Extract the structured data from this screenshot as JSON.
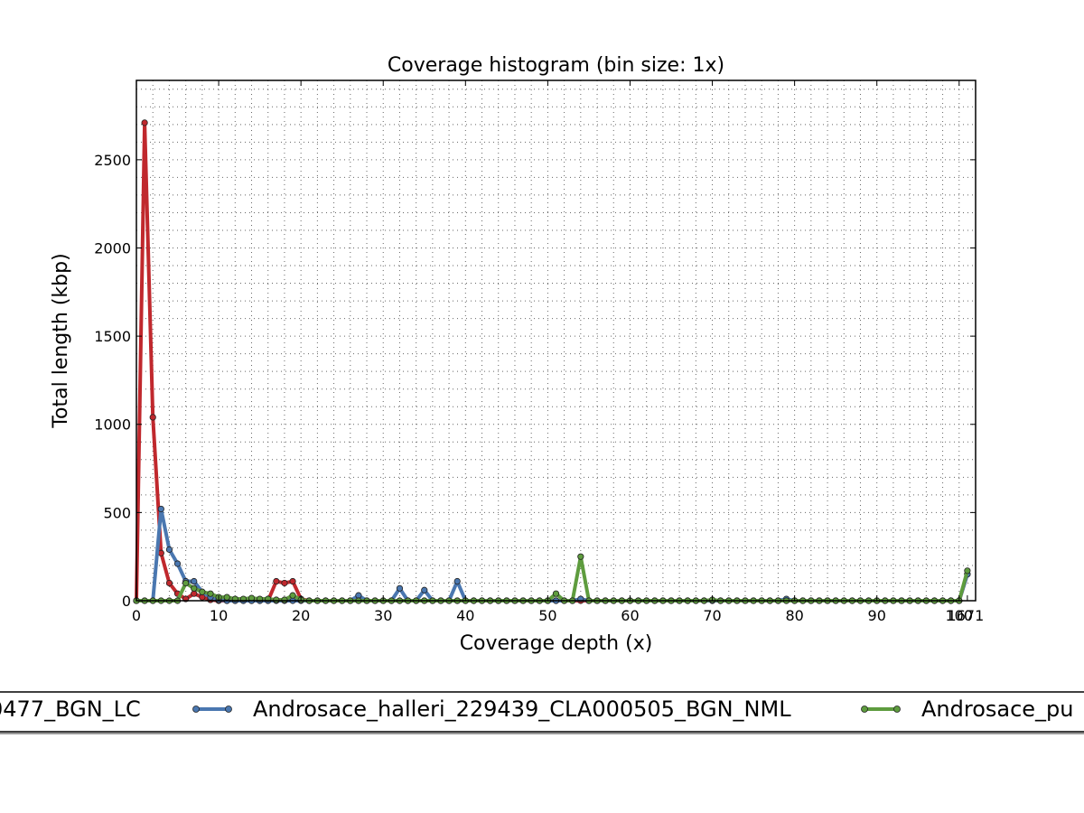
{
  "chart_data": {
    "type": "line",
    "title": "Coverage histogram (bin size: 1x)",
    "xlabel": "Coverage depth (x)",
    "ylabel": "Total length (kbp)",
    "xlim": [
      0,
      102
    ],
    "ylim": [
      0,
      2950
    ],
    "x_ticks": [
      0,
      10,
      20,
      30,
      40,
      50,
      60,
      70,
      80,
      90,
      100
    ],
    "x_tick_labels": [
      "0",
      "10",
      "20",
      "30",
      "40",
      "50",
      "60",
      "70",
      "80",
      "90",
      "100"
    ],
    "x_last_tick": {
      "x": 101,
      "label": "1671"
    },
    "y_ticks": [
      0,
      500,
      1000,
      1500,
      2000,
      2500
    ],
    "y_tick_labels": [
      "0",
      "500",
      "1000",
      "1500",
      "2000",
      "2500"
    ],
    "grid": true,
    "legend_placement": "bottom",
    "series": [
      {
        "name": "",
        "legend_label": "0477_BGN_LC",
        "color": "#c0282d",
        "points": [
          [
            0,
            0
          ],
          [
            1,
            2710
          ],
          [
            2,
            1040
          ],
          [
            3,
            270
          ],
          [
            4,
            100
          ],
          [
            5,
            40
          ],
          [
            6,
            10
          ],
          [
            7,
            40
          ],
          [
            8,
            20
          ],
          [
            9,
            5
          ],
          [
            10,
            0
          ],
          [
            11,
            0
          ],
          [
            12,
            0
          ],
          [
            13,
            0
          ],
          [
            14,
            0
          ],
          [
            15,
            0
          ],
          [
            16,
            0
          ],
          [
            17,
            110
          ],
          [
            18,
            100
          ],
          [
            19,
            110
          ],
          [
            20,
            10
          ],
          [
            21,
            0
          ],
          [
            22,
            0
          ],
          [
            23,
            0
          ],
          [
            24,
            0
          ],
          [
            25,
            0
          ],
          [
            26,
            0
          ],
          [
            27,
            0
          ],
          [
            28,
            0
          ],
          [
            29,
            0
          ],
          [
            30,
            0
          ],
          [
            31,
            0
          ],
          [
            32,
            0
          ],
          [
            33,
            0
          ],
          [
            34,
            0
          ],
          [
            35,
            0
          ],
          [
            36,
            0
          ],
          [
            37,
            0
          ],
          [
            38,
            0
          ],
          [
            39,
            0
          ],
          [
            40,
            0
          ],
          [
            41,
            0
          ],
          [
            42,
            0
          ],
          [
            43,
            0
          ],
          [
            44,
            0
          ],
          [
            45,
            0
          ],
          [
            46,
            0
          ],
          [
            47,
            0
          ],
          [
            48,
            0
          ],
          [
            49,
            0
          ],
          [
            50,
            0
          ],
          [
            51,
            0
          ],
          [
            52,
            0
          ],
          [
            53,
            0
          ],
          [
            54,
            0
          ],
          [
            55,
            0
          ],
          [
            56,
            0
          ],
          [
            57,
            0
          ],
          [
            58,
            0
          ],
          [
            59,
            0
          ],
          [
            60,
            0
          ],
          [
            61,
            0
          ],
          [
            62,
            0
          ],
          [
            63,
            0
          ],
          [
            64,
            0
          ],
          [
            65,
            0
          ],
          [
            66,
            0
          ],
          [
            67,
            0
          ],
          [
            68,
            0
          ],
          [
            69,
            0
          ],
          [
            70,
            0
          ],
          [
            71,
            0
          ],
          [
            72,
            0
          ],
          [
            73,
            0
          ],
          [
            74,
            0
          ],
          [
            75,
            0
          ],
          [
            76,
            0
          ],
          [
            77,
            0
          ],
          [
            78,
            0
          ],
          [
            79,
            0
          ],
          [
            80,
            0
          ],
          [
            81,
            0
          ],
          [
            82,
            0
          ],
          [
            83,
            0
          ],
          [
            84,
            0
          ],
          [
            85,
            0
          ],
          [
            86,
            0
          ],
          [
            87,
            0
          ],
          [
            88,
            0
          ],
          [
            89,
            0
          ],
          [
            90,
            0
          ],
          [
            91,
            0
          ],
          [
            92,
            0
          ],
          [
            93,
            0
          ],
          [
            94,
            0
          ],
          [
            95,
            0
          ],
          [
            96,
            0
          ],
          [
            97,
            0
          ],
          [
            98,
            0
          ],
          [
            99,
            0
          ],
          [
            100,
            0
          ],
          [
            101,
            150
          ]
        ]
      },
      {
        "name": "Androsace_halleri_229439_CLA000505_BGN_NML",
        "legend_label": "Androsace_halleri_229439_CLA000505_BGN_NML",
        "color": "#4a77b0",
        "points": [
          [
            0,
            0
          ],
          [
            1,
            0
          ],
          [
            2,
            0
          ],
          [
            3,
            520
          ],
          [
            4,
            290
          ],
          [
            5,
            210
          ],
          [
            6,
            110
          ],
          [
            7,
            110
          ],
          [
            8,
            50
          ],
          [
            9,
            20
          ],
          [
            10,
            5
          ],
          [
            11,
            0
          ],
          [
            12,
            0
          ],
          [
            13,
            0
          ],
          [
            14,
            0
          ],
          [
            15,
            0
          ],
          [
            16,
            0
          ],
          [
            17,
            0
          ],
          [
            18,
            0
          ],
          [
            19,
            0
          ],
          [
            20,
            0
          ],
          [
            21,
            0
          ],
          [
            22,
            0
          ],
          [
            23,
            0
          ],
          [
            24,
            0
          ],
          [
            25,
            0
          ],
          [
            26,
            0
          ],
          [
            27,
            30
          ],
          [
            28,
            0
          ],
          [
            29,
            0
          ],
          [
            30,
            0
          ],
          [
            31,
            0
          ],
          [
            32,
            70
          ],
          [
            33,
            0
          ],
          [
            34,
            0
          ],
          [
            35,
            60
          ],
          [
            36,
            0
          ],
          [
            37,
            0
          ],
          [
            38,
            0
          ],
          [
            39,
            110
          ],
          [
            40,
            0
          ],
          [
            41,
            0
          ],
          [
            42,
            0
          ],
          [
            43,
            0
          ],
          [
            44,
            0
          ],
          [
            45,
            0
          ],
          [
            46,
            0
          ],
          [
            47,
            0
          ],
          [
            48,
            0
          ],
          [
            49,
            0
          ],
          [
            50,
            0
          ],
          [
            51,
            0
          ],
          [
            52,
            0
          ],
          [
            53,
            0
          ],
          [
            54,
            10
          ],
          [
            55,
            0
          ],
          [
            56,
            0
          ],
          [
            57,
            0
          ],
          [
            58,
            0
          ],
          [
            59,
            0
          ],
          [
            60,
            0
          ],
          [
            61,
            0
          ],
          [
            62,
            0
          ],
          [
            63,
            0
          ],
          [
            64,
            0
          ],
          [
            65,
            0
          ],
          [
            66,
            0
          ],
          [
            67,
            0
          ],
          [
            68,
            0
          ],
          [
            69,
            0
          ],
          [
            70,
            0
          ],
          [
            71,
            0
          ],
          [
            72,
            0
          ],
          [
            73,
            0
          ],
          [
            74,
            0
          ],
          [
            75,
            0
          ],
          [
            76,
            0
          ],
          [
            77,
            0
          ],
          [
            78,
            0
          ],
          [
            79,
            10
          ],
          [
            80,
            0
          ],
          [
            81,
            0
          ],
          [
            82,
            0
          ],
          [
            83,
            0
          ],
          [
            84,
            0
          ],
          [
            85,
            0
          ],
          [
            86,
            0
          ],
          [
            87,
            0
          ],
          [
            88,
            0
          ],
          [
            89,
            0
          ],
          [
            90,
            0
          ],
          [
            91,
            0
          ],
          [
            92,
            0
          ],
          [
            93,
            0
          ],
          [
            94,
            0
          ],
          [
            95,
            0
          ],
          [
            96,
            0
          ],
          [
            97,
            0
          ],
          [
            98,
            0
          ],
          [
            99,
            0
          ],
          [
            100,
            0
          ],
          [
            101,
            150
          ]
        ]
      },
      {
        "name": "",
        "legend_label": "Androsace_pu",
        "color": "#5e9c3e",
        "points": [
          [
            0,
            0
          ],
          [
            1,
            0
          ],
          [
            2,
            0
          ],
          [
            3,
            0
          ],
          [
            4,
            0
          ],
          [
            5,
            0
          ],
          [
            6,
            100
          ],
          [
            7,
            70
          ],
          [
            8,
            50
          ],
          [
            9,
            40
          ],
          [
            10,
            20
          ],
          [
            11,
            20
          ],
          [
            12,
            10
          ],
          [
            13,
            10
          ],
          [
            14,
            15
          ],
          [
            15,
            10
          ],
          [
            16,
            10
          ],
          [
            17,
            5
          ],
          [
            18,
            5
          ],
          [
            19,
            30
          ],
          [
            20,
            5
          ],
          [
            21,
            0
          ],
          [
            22,
            0
          ],
          [
            23,
            0
          ],
          [
            24,
            0
          ],
          [
            25,
            0
          ],
          [
            26,
            0
          ],
          [
            27,
            0
          ],
          [
            28,
            0
          ],
          [
            29,
            0
          ],
          [
            30,
            0
          ],
          [
            31,
            0
          ],
          [
            32,
            0
          ],
          [
            33,
            0
          ],
          [
            34,
            0
          ],
          [
            35,
            0
          ],
          [
            36,
            0
          ],
          [
            37,
            0
          ],
          [
            38,
            0
          ],
          [
            39,
            0
          ],
          [
            40,
            0
          ],
          [
            41,
            0
          ],
          [
            42,
            0
          ],
          [
            43,
            0
          ],
          [
            44,
            0
          ],
          [
            45,
            0
          ],
          [
            46,
            0
          ],
          [
            47,
            0
          ],
          [
            48,
            0
          ],
          [
            49,
            0
          ],
          [
            50,
            0
          ],
          [
            51,
            40
          ],
          [
            52,
            0
          ],
          [
            53,
            0
          ],
          [
            54,
            250
          ],
          [
            55,
            0
          ],
          [
            56,
            0
          ],
          [
            57,
            0
          ],
          [
            58,
            0
          ],
          [
            59,
            0
          ],
          [
            60,
            0
          ],
          [
            61,
            0
          ],
          [
            62,
            0
          ],
          [
            63,
            0
          ],
          [
            64,
            0
          ],
          [
            65,
            0
          ],
          [
            66,
            0
          ],
          [
            67,
            0
          ],
          [
            68,
            0
          ],
          [
            69,
            0
          ],
          [
            70,
            5
          ],
          [
            71,
            0
          ],
          [
            72,
            0
          ],
          [
            73,
            0
          ],
          [
            74,
            0
          ],
          [
            75,
            0
          ],
          [
            76,
            0
          ],
          [
            77,
            0
          ],
          [
            78,
            0
          ],
          [
            79,
            0
          ],
          [
            80,
            0
          ],
          [
            81,
            0
          ],
          [
            82,
            0
          ],
          [
            83,
            0
          ],
          [
            84,
            0
          ],
          [
            85,
            0
          ],
          [
            86,
            0
          ],
          [
            87,
            0
          ],
          [
            88,
            0
          ],
          [
            89,
            0
          ],
          [
            90,
            0
          ],
          [
            91,
            0
          ],
          [
            92,
            0
          ],
          [
            93,
            0
          ],
          [
            94,
            0
          ],
          [
            95,
            0
          ],
          [
            96,
            0
          ],
          [
            97,
            0
          ],
          [
            98,
            0
          ],
          [
            99,
            0
          ],
          [
            100,
            0
          ],
          [
            101,
            170
          ]
        ]
      }
    ]
  }
}
